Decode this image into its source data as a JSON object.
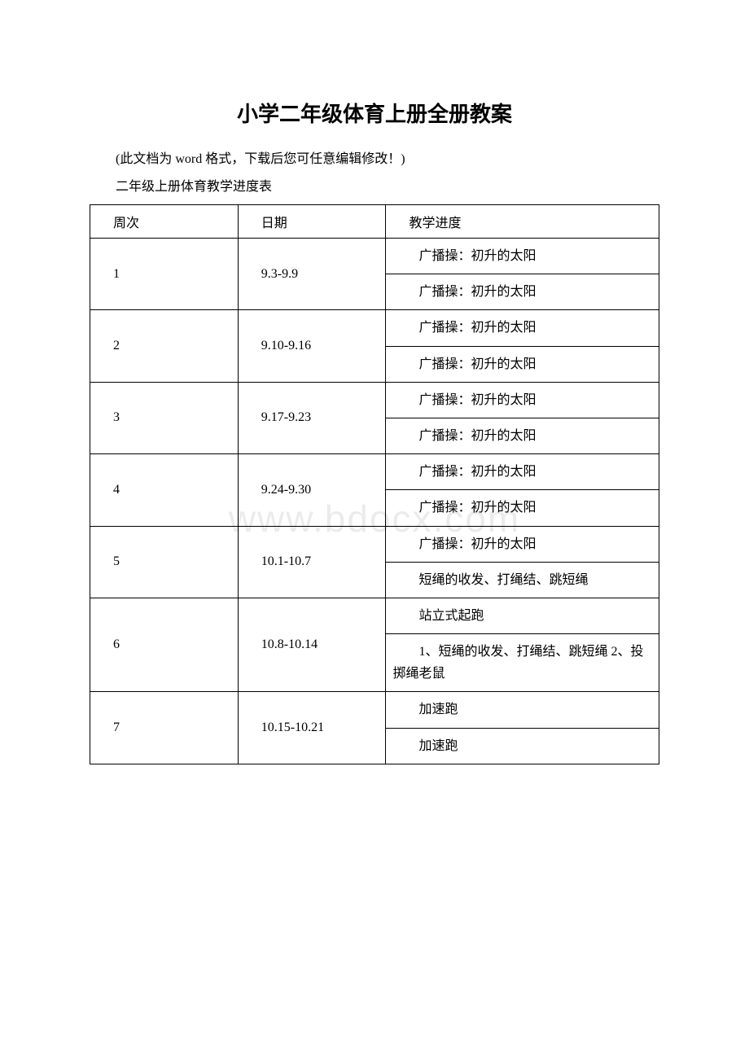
{
  "title": "小学二年级体育上册全册教案",
  "intro": "(此文档为 word 格式，下载后您可任意编辑修改！)",
  "subtitle": "二年级上册体育教学进度表",
  "watermark": "www.bdocx.com",
  "table": {
    "headers": [
      "周次",
      "日期",
      "教学进度"
    ],
    "col_widths": [
      "26%",
      "26%",
      "48%"
    ],
    "rows": [
      {
        "week": "1",
        "date": "9.3-9.9",
        "items": [
          "广播操：初升的太阳",
          "广播操：初升的太阳"
        ]
      },
      {
        "week": "2",
        "date": "9.10-9.16",
        "items": [
          "广播操：初升的太阳",
          "广播操：初升的太阳"
        ]
      },
      {
        "week": "3",
        "date": "9.17-9.23",
        "items": [
          "广播操：初升的太阳",
          "广播操：初升的太阳"
        ]
      },
      {
        "week": "4",
        "date": "9.24-9.30",
        "items": [
          "广播操：初升的太阳",
          "广播操：初升的太阳"
        ]
      },
      {
        "week": "5",
        "date": "10.1-10.7",
        "items": [
          "广播操：初升的太阳",
          "短绳的收发、打绳结、跳短绳"
        ]
      },
      {
        "week": "6",
        "date": "10.8-10.14",
        "items": [
          "站立式起跑",
          "1、短绳的收发、打绳结、跳短绳 2、投掷绳老鼠"
        ]
      },
      {
        "week": "7",
        "date": "10.15-10.21",
        "items": [
          "加速跑",
          "加速跑"
        ]
      }
    ]
  }
}
